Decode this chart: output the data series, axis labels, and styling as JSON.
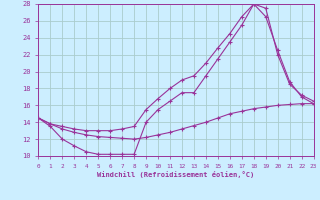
{
  "xlabel": "Windchill (Refroidissement éolien,°C)",
  "ylabel": "",
  "xlim": [
    0,
    23
  ],
  "ylim": [
    10,
    28
  ],
  "yticks": [
    10,
    12,
    14,
    16,
    18,
    20,
    22,
    24,
    26,
    28
  ],
  "xticks": [
    0,
    1,
    2,
    3,
    4,
    5,
    6,
    7,
    8,
    9,
    10,
    11,
    12,
    13,
    14,
    15,
    16,
    17,
    18,
    19,
    20,
    21,
    22,
    23
  ],
  "bg_color": "#cceeff",
  "line_color": "#993399",
  "grid_color": "#aacccc",
  "line1_x": [
    0,
    1,
    2,
    3,
    4,
    5,
    6,
    7,
    8,
    9,
    10,
    11,
    12,
    13,
    14,
    15,
    16,
    17,
    18,
    19,
    20,
    21,
    22,
    23
  ],
  "line1_y": [
    14.5,
    13.8,
    13.2,
    12.8,
    12.5,
    12.3,
    12.2,
    12.1,
    12.0,
    12.2,
    12.5,
    12.8,
    13.2,
    13.6,
    14.0,
    14.5,
    15.0,
    15.3,
    15.6,
    15.8,
    16.0,
    16.1,
    16.2,
    16.2
  ],
  "line2_x": [
    0,
    1,
    2,
    3,
    4,
    5,
    6,
    7,
    8,
    9,
    10,
    11,
    12,
    13,
    14,
    15,
    16,
    17,
    18,
    19,
    20,
    21,
    22,
    23
  ],
  "line2_y": [
    14.5,
    13.5,
    12.0,
    11.2,
    10.5,
    10.2,
    10.2,
    10.2,
    10.2,
    14.0,
    15.5,
    16.5,
    17.5,
    17.5,
    19.5,
    21.5,
    23.5,
    25.5,
    28.0,
    27.5,
    22.0,
    18.5,
    17.2,
    16.5
  ],
  "line3_x": [
    0,
    1,
    2,
    3,
    4,
    5,
    6,
    7,
    8,
    9,
    10,
    11,
    12,
    13,
    14,
    15,
    16,
    17,
    18,
    19,
    20,
    21,
    22,
    23
  ],
  "line3_y": [
    14.5,
    13.8,
    13.5,
    13.2,
    13.0,
    13.0,
    13.0,
    13.2,
    13.5,
    15.5,
    16.8,
    18.0,
    19.0,
    19.5,
    21.0,
    22.8,
    24.5,
    26.5,
    28.0,
    26.5,
    22.5,
    18.8,
    17.0,
    16.2
  ]
}
